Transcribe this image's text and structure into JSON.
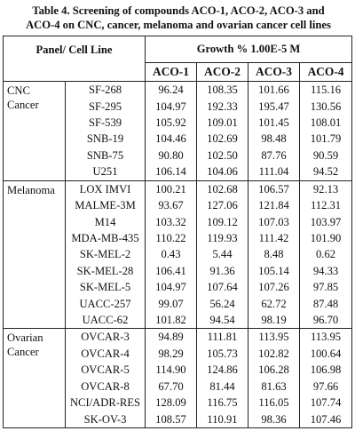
{
  "caption": {
    "line1": "Table 4. Screening of compounds ACO-1, ACO-2, ACO-3 and",
    "line2": "ACO-4 on CNC, cancer, melanoma and ovarian cancer cell lines"
  },
  "header": {
    "panel_cell_line": "Panel/ Cell Line",
    "growth": "Growth % 1.00E-5 M",
    "compounds": [
      "ACO-1",
      "ACO-2",
      "ACO-3",
      "ACO-4"
    ]
  },
  "groups": [
    {
      "panel_lines": [
        "CNC",
        "Cancer"
      ],
      "rows": [
        {
          "cell_line": "SF-268",
          "values": [
            "96.24",
            "108.35",
            "101.66",
            "115.16"
          ]
        },
        {
          "cell_line": "SF-295",
          "values": [
            "104.97",
            "192.33",
            "195.47",
            "130.56"
          ]
        },
        {
          "cell_line": "SF-539",
          "values": [
            "105.92",
            "109.01",
            "101.45",
            "108.01"
          ]
        },
        {
          "cell_line": "SNB-19",
          "values": [
            "104.46",
            "102.69",
            "98.48",
            "101.79"
          ]
        },
        {
          "cell_line": "SNB-75",
          "values": [
            "90.80",
            "102.50",
            "87.76",
            "90.59"
          ]
        },
        {
          "cell_line": "U251",
          "values": [
            "106.14",
            "104.06",
            "111.04",
            "94.52"
          ]
        }
      ]
    },
    {
      "panel_lines": [
        "Melanoma"
      ],
      "rows": [
        {
          "cell_line": "LOX IMVI",
          "values": [
            "100.21",
            "102.68",
            "106.57",
            "92.13"
          ]
        },
        {
          "cell_line": "MALME-3M",
          "values": [
            "93.67",
            "127.06",
            "121.84",
            "112.31"
          ]
        },
        {
          "cell_line": "M14",
          "values": [
            "103.32",
            "109.12",
            "107.03",
            "103.97"
          ]
        },
        {
          "cell_line": "MDA-MB-435",
          "values": [
            "110.22",
            "119.93",
            "111.42",
            "101.90"
          ]
        },
        {
          "cell_line": "SK-MEL-2",
          "values": [
            "0.43",
            "5.44",
            "8.48",
            "0.62"
          ]
        },
        {
          "cell_line": "SK-MEL-28",
          "values": [
            "106.41",
            "91.36",
            "105.14",
            "94.33"
          ]
        },
        {
          "cell_line": "SK-MEL-5",
          "values": [
            "104.97",
            "107.64",
            "107.26",
            "97.85"
          ]
        },
        {
          "cell_line": "UACC-257",
          "values": [
            "99.07",
            "56.24",
            "62.72",
            "87.48"
          ]
        },
        {
          "cell_line": "UACC-62",
          "values": [
            "101.82",
            "94.54",
            "98.19",
            "96.70"
          ]
        }
      ]
    },
    {
      "panel_lines": [
        "Ovarian",
        "Cancer"
      ],
      "rows": [
        {
          "cell_line": "OVCAR-3",
          "values": [
            "94.89",
            "111.81",
            "113.95",
            "113.95"
          ]
        },
        {
          "cell_line": "OVCAR-4",
          "values": [
            "98.29",
            "105.73",
            "102.82",
            "100.64"
          ]
        },
        {
          "cell_line": "OVCAR-5",
          "values": [
            "114.90",
            "124.86",
            "106.28",
            "106.98"
          ]
        },
        {
          "cell_line": "OVCAR-8",
          "values": [
            "67.70",
            "81.44",
            "81.63",
            "97.66"
          ]
        },
        {
          "cell_line": "NCI/ADR-RES",
          "values": [
            "128.09",
            "116.75",
            "116.05",
            "107.74"
          ]
        },
        {
          "cell_line": "SK-OV-3",
          "values": [
            "108.57",
            "110.91",
            "98.36",
            "107.46"
          ]
        }
      ]
    }
  ]
}
